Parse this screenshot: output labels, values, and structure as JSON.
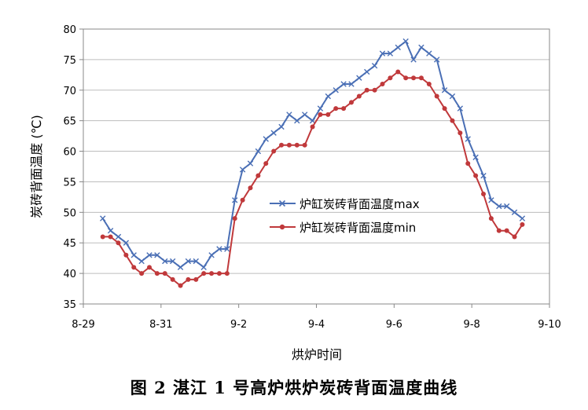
{
  "caption": "图 2  湛江 1 号高炉烘炉炭砖背面温度曲线",
  "chart_data": {
    "type": "line",
    "xlabel": "烘炉时间",
    "ylabel": "炭砖背面温度 (℃)",
    "x_tick_labels": [
      "8-29",
      "8-31",
      "9-2",
      "9-4",
      "9-6",
      "9-8",
      "9-10"
    ],
    "x_ticks": [
      0,
      2,
      4,
      6,
      8,
      10,
      12
    ],
    "xlim": [
      0,
      12
    ],
    "ylim": [
      35,
      80
    ],
    "y_ticks": [
      35,
      40,
      45,
      50,
      55,
      60,
      65,
      70,
      75,
      80
    ],
    "grid": "horizontal",
    "legend_position": "center-right",
    "series": [
      {
        "name": "炉缸炭砖背面温度max",
        "color": "#4a6fb5",
        "marker": "x",
        "x": [
          0.5,
          0.7,
          0.9,
          1.1,
          1.3,
          1.5,
          1.7,
          1.9,
          2.1,
          2.3,
          2.5,
          2.7,
          2.9,
          3.1,
          3.3,
          3.5,
          3.7,
          3.9,
          4.1,
          4.3,
          4.5,
          4.7,
          4.9,
          5.1,
          5.3,
          5.5,
          5.7,
          5.9,
          6.1,
          6.3,
          6.5,
          6.7,
          6.9,
          7.1,
          7.3,
          7.5,
          7.7,
          7.9,
          8.1,
          8.3,
          8.5,
          8.7,
          8.9,
          9.1,
          9.3,
          9.5,
          9.7,
          9.9,
          10.1,
          10.3,
          10.5,
          10.7,
          10.9,
          11.1,
          11.3
        ],
        "y": [
          49,
          47,
          46,
          45,
          43,
          42,
          43,
          43,
          42,
          42,
          41,
          42,
          42,
          41,
          43,
          44,
          44,
          52,
          57,
          58,
          60,
          62,
          63,
          64,
          66,
          65,
          66,
          65,
          67,
          69,
          70,
          71,
          71,
          72,
          73,
          74,
          76,
          76,
          77,
          78,
          75,
          77,
          76,
          75,
          70,
          69,
          67,
          62,
          59,
          56,
          52,
          51,
          51,
          50,
          49
        ]
      },
      {
        "name": "炉缸炭砖背面温度min",
        "color": "#c0393b",
        "marker": "o",
        "x": [
          0.5,
          0.7,
          0.9,
          1.1,
          1.3,
          1.5,
          1.7,
          1.9,
          2.1,
          2.3,
          2.5,
          2.7,
          2.9,
          3.1,
          3.3,
          3.5,
          3.7,
          3.9,
          4.1,
          4.3,
          4.5,
          4.7,
          4.9,
          5.1,
          5.3,
          5.5,
          5.7,
          5.9,
          6.1,
          6.3,
          6.5,
          6.7,
          6.9,
          7.1,
          7.3,
          7.5,
          7.7,
          7.9,
          8.1,
          8.3,
          8.5,
          8.7,
          8.9,
          9.1,
          9.3,
          9.5,
          9.7,
          9.9,
          10.1,
          10.3,
          10.5,
          10.7,
          10.9,
          11.1,
          11.3
        ],
        "y": [
          46,
          46,
          45,
          43,
          41,
          40,
          41,
          40,
          40,
          39,
          38,
          39,
          39,
          40,
          40,
          40,
          40,
          49,
          52,
          54,
          56,
          58,
          60,
          61,
          61,
          61,
          61,
          64,
          66,
          66,
          67,
          67,
          68,
          69,
          70,
          70,
          71,
          72,
          73,
          72,
          72,
          72,
          71,
          69,
          67,
          65,
          63,
          58,
          56,
          53,
          49,
          47,
          47,
          46,
          48
        ]
      }
    ]
  }
}
